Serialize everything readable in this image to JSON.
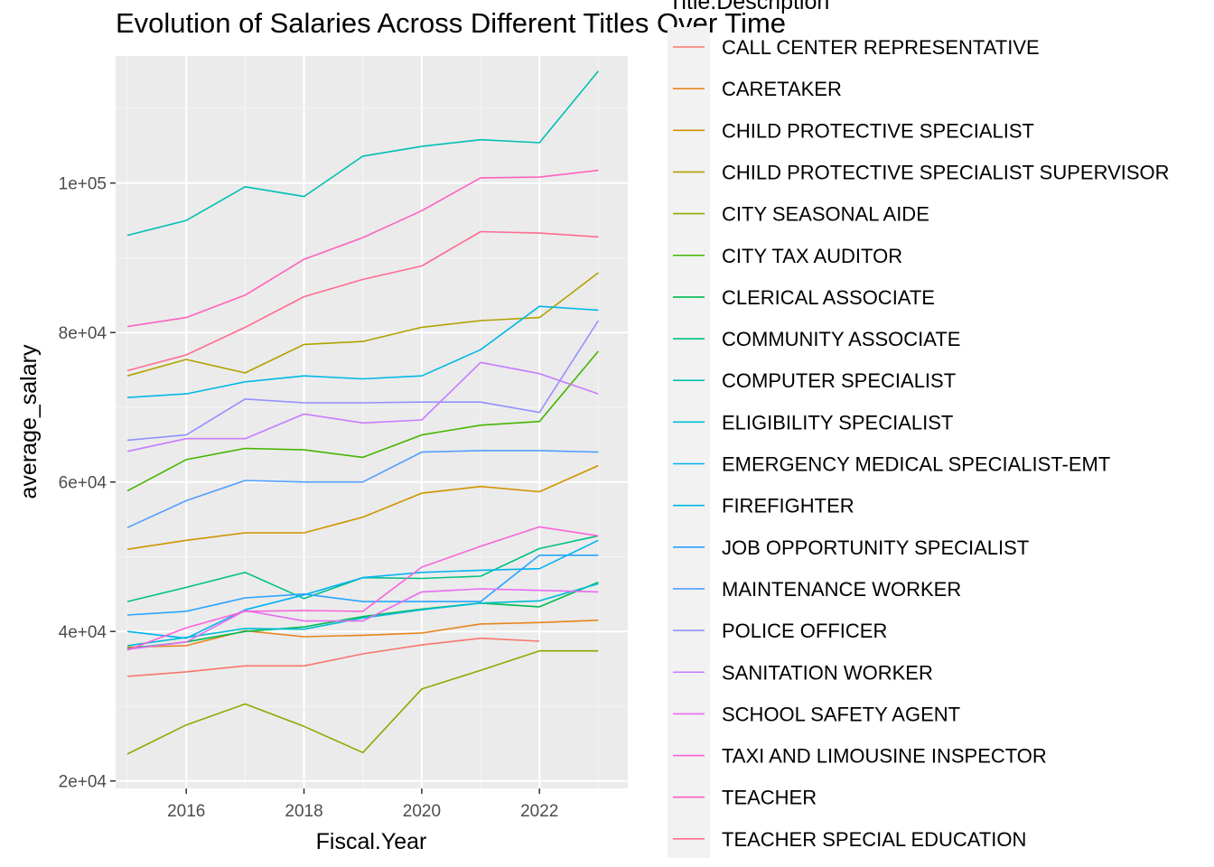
{
  "chart_data": {
    "type": "line",
    "title": "Evolution of Salaries Across Different Titles Over Time",
    "xlabel": "Fiscal.Year",
    "ylabel": "average_salary",
    "x": [
      2015,
      2016,
      2017,
      2018,
      2019,
      2020,
      2021,
      2022,
      2023
    ],
    "xlim": [
      2014.8,
      2023.5
    ],
    "ylim": [
      19000,
      117000
    ],
    "x_ticks": [
      2016,
      2018,
      2020,
      2022
    ],
    "x_tick_labels": [
      "2016",
      "2018",
      "2020",
      "2022"
    ],
    "y_ticks": [
      20000,
      40000,
      60000,
      80000,
      100000
    ],
    "y_tick_labels": [
      "2e+04",
      "4e+04",
      "6e+04",
      "8e+04",
      "1e+05"
    ],
    "grid": true,
    "legend_title": "Title.Description",
    "legend_position": "right",
    "series": [
      {
        "name": "CALL CENTER REPRESENTATIVE",
        "color": "#F8766D",
        "values": [
          34000,
          34600,
          35400,
          35400,
          37000,
          38200,
          39100,
          38700,
          null
        ]
      },
      {
        "name": "CARETAKER",
        "color": "#E7851E",
        "values": [
          37900,
          38100,
          40100,
          39300,
          39500,
          39800,
          41000,
          41200,
          41500
        ]
      },
      {
        "name": "CHILD PROTECTIVE SPECIALIST",
        "color": "#D09400",
        "values": [
          51000,
          52200,
          53200,
          53200,
          55300,
          58500,
          59400,
          58700,
          62200
        ]
      },
      {
        "name": "CHILD PROTECTIVE SPECIALIST SUPERVISOR",
        "color": "#B2A100",
        "values": [
          74200,
          76400,
          74600,
          78400,
          78800,
          80700,
          81600,
          82000,
          88000
        ]
      },
      {
        "name": "CITY SEASONAL AIDE",
        "color": "#89AC00",
        "values": [
          23600,
          27500,
          30300,
          27300,
          23800,
          32300,
          34800,
          37400,
          37400
        ]
      },
      {
        "name": "CITY TAX AUDITOR",
        "color": "#45B500",
        "values": [
          58800,
          63000,
          64500,
          64300,
          63300,
          66300,
          67600,
          68100,
          77500
        ]
      },
      {
        "name": "CLERICAL ASSOCIATE",
        "color": "#00BC51",
        "values": [
          37700,
          38600,
          40000,
          40600,
          42000,
          43000,
          43800,
          43300,
          46600
        ]
      },
      {
        "name": "COMMUNITY ASSOCIATE",
        "color": "#00C087",
        "values": [
          44000,
          45900,
          47900,
          44400,
          47200,
          47100,
          47400,
          51100,
          52800
        ]
      },
      {
        "name": "COMPUTER SPECIALIST",
        "color": "#00C0B2",
        "values": [
          93000,
          95000,
          99500,
          98200,
          103600,
          104900,
          105800,
          105400,
          115000
        ]
      },
      {
        "name": "ELIGIBILITY SPECIALIST",
        "color": "#00BCD6",
        "values": [
          38100,
          39200,
          40400,
          40300,
          41800,
          42900,
          43800,
          44100,
          46400
        ]
      },
      {
        "name": "EMERGENCY MEDICAL SPECIALIST-EMT",
        "color": "#00B3F2",
        "values": [
          40000,
          39100,
          42900,
          44900,
          47200,
          47900,
          48200,
          48400,
          52200
        ]
      },
      {
        "name": "FIREFIGHTER",
        "color": "#00B8E7",
        "values": [
          71300,
          71800,
          73400,
          74200,
          73800,
          74200,
          77700,
          83500,
          83000
        ]
      },
      {
        "name": "JOB OPPORTUNITY SPECIALIST",
        "color": "#29A3FF",
        "values": [
          42200,
          42700,
          44500,
          45000,
          44000,
          44000,
          44000,
          50200,
          50200
        ]
      },
      {
        "name": "MAINTENANCE WORKER",
        "color": "#529EFF",
        "values": [
          53900,
          57500,
          60200,
          60000,
          60000,
          64000,
          64200,
          64200,
          64000
        ]
      },
      {
        "name": "POLICE OFFICER",
        "color": "#9590FF",
        "values": [
          65600,
          66300,
          71100,
          70600,
          70600,
          70700,
          70700,
          69300,
          81600
        ]
      },
      {
        "name": "SANITATION WORKER",
        "color": "#C77CFF",
        "values": [
          64100,
          65800,
          65800,
          69100,
          67900,
          68300,
          76000,
          74500,
          71800
        ]
      },
      {
        "name": "SCHOOL SAFETY AGENT",
        "color": "#E76BF3",
        "values": [
          37600,
          38600,
          42800,
          41400,
          41400,
          45300,
          45700,
          45500,
          45300
        ]
      },
      {
        "name": "TAXI AND LIMOUSINE INSPECTOR",
        "color": "#FA62DB",
        "values": [
          37500,
          40500,
          42700,
          42800,
          42700,
          48600,
          51400,
          54000,
          52800
        ]
      },
      {
        "name": "TEACHER",
        "color": "#FF62BC",
        "values": [
          80800,
          82000,
          85000,
          89800,
          92700,
          96300,
          100700,
          100800,
          101700
        ]
      },
      {
        "name": "TEACHER SPECIAL EDUCATION",
        "color": "#FF6C91",
        "values": [
          74900,
          77000,
          80700,
          84800,
          87100,
          88900,
          93500,
          93300,
          92800
        ]
      }
    ]
  }
}
